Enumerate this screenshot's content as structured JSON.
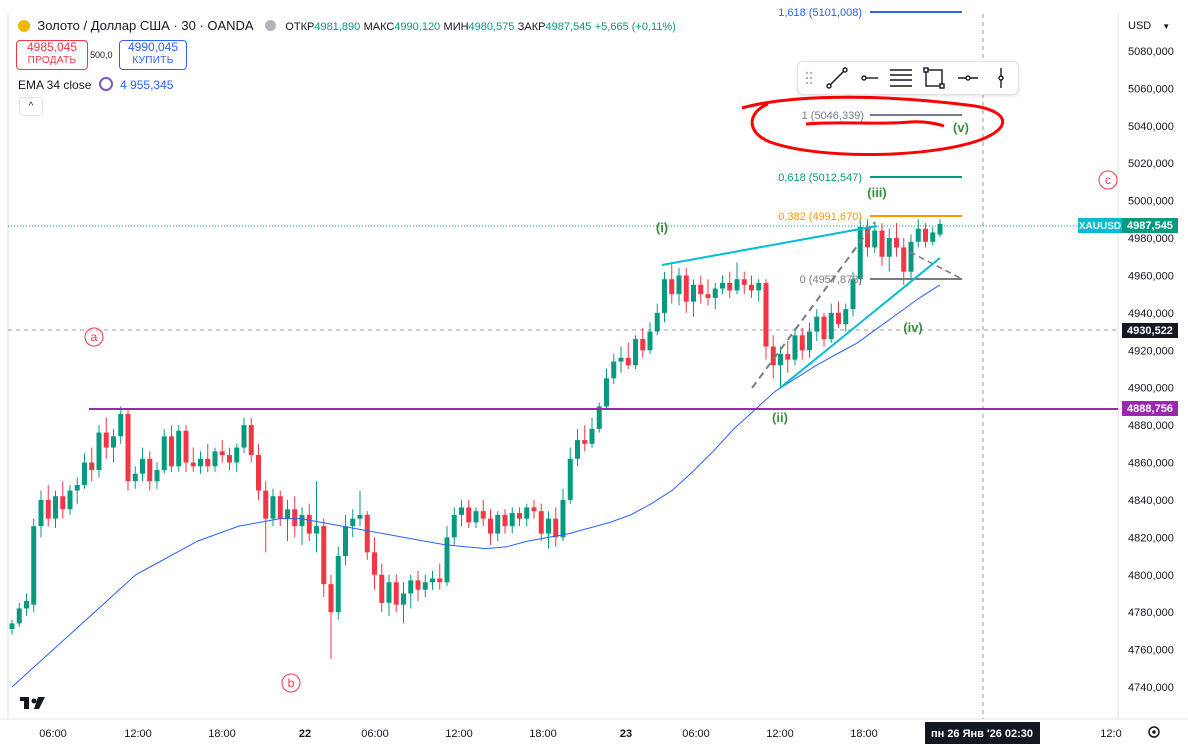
{
  "header": {
    "symbol_title": "Золото / Доллар США · 30 · OANDA",
    "o_label": "ОТКР",
    "o_value": "4981,890",
    "h_label": "МАКС",
    "h_value": "4990,120",
    "l_label": "МИН",
    "l_value": "4980,575",
    "c_label": "ЗАКР",
    "c_value": "4987,545",
    "change": "+5,665 (+0,11%)"
  },
  "trade": {
    "sell_price": "4985,045",
    "sell_label": "ПРОДАТЬ",
    "spread": "500,0",
    "buy_price": "4990,045",
    "buy_label": "КУПИТЬ"
  },
  "indicator": {
    "name": "EMA 34 close",
    "value": "4 955,345"
  },
  "currency": "USD",
  "price_scale": [
    "5080,000",
    "5060,000",
    "5040,000",
    "5020,000",
    "5000,000",
    "4980,000",
    "4960,000",
    "4940,000",
    "4920,000",
    "4900,000",
    "4880,000",
    "4860,000",
    "4840,000",
    "4820,000",
    "4800,000",
    "4780,000",
    "4760,000",
    "4740,000"
  ],
  "price_badges": {
    "symbol": "XAUUSD",
    "last": "4987,545",
    "crosshair": "4930,522",
    "hline": "4888,756"
  },
  "time_scale": [
    "06:00",
    "12:00",
    "18:00",
    "22",
    "06:00",
    "12:00",
    "18:00",
    "23",
    "06:00",
    "12:00",
    "18:00",
    "12:0"
  ],
  "crosshair_time": "пн 26 Янв '26   02:30",
  "fib": {
    "l1618": "1,618 (5101,008)",
    "l1": "1 (5046,339)",
    "l0618": "0,618 (5012,547)",
    "l0382": "0,382 (4991,670)",
    "l0": "0 (4957,878)"
  },
  "wave_labels": {
    "a": "a",
    "b": "b",
    "c": "c",
    "w1": "(i)",
    "w2": "(ii)",
    "w3": "(iii)",
    "w4": "(iv)",
    "w5": "(v)"
  },
  "colors": {
    "up": "#089981",
    "down": "#f23645",
    "ema": "#2962ff",
    "hline": "#9c27b0",
    "trendline": "#00bcd4",
    "annotation": "#ff0000"
  },
  "icons": [
    "drag-handle-icon",
    "trend-line-icon",
    "horizontal-ray-icon",
    "fib-retracement-icon",
    "rectangle-icon",
    "horizontal-line-icon",
    "vertical-line-icon",
    "tradingview-logo-icon",
    "settings-icon",
    "collapse-chevron-icon",
    "ema-settings-icon"
  ],
  "chart_data": {
    "type": "candlestick",
    "ylim": [
      4730,
      5090
    ],
    "candles": [
      {
        "o": 4771,
        "h": 4776,
        "l": 4768,
        "c": 4774
      },
      {
        "o": 4774,
        "h": 4785,
        "l": 4772,
        "c": 4782
      },
      {
        "o": 4782,
        "h": 4790,
        "l": 4778,
        "c": 4786
      },
      {
        "o": 4784,
        "h": 4830,
        "l": 4780,
        "c": 4826
      },
      {
        "o": 4826,
        "h": 4845,
        "l": 4820,
        "c": 4840
      },
      {
        "o": 4840,
        "h": 4848,
        "l": 4826,
        "c": 4830
      },
      {
        "o": 4830,
        "h": 4845,
        "l": 4825,
        "c": 4842
      },
      {
        "o": 4842,
        "h": 4850,
        "l": 4830,
        "c": 4835
      },
      {
        "o": 4835,
        "h": 4848,
        "l": 4832,
        "c": 4845
      },
      {
        "o": 4845,
        "h": 4852,
        "l": 4838,
        "c": 4848
      },
      {
        "o": 4848,
        "h": 4865,
        "l": 4846,
        "c": 4860
      },
      {
        "o": 4860,
        "h": 4868,
        "l": 4850,
        "c": 4856
      },
      {
        "o": 4856,
        "h": 4880,
        "l": 4852,
        "c": 4876
      },
      {
        "o": 4876,
        "h": 4884,
        "l": 4862,
        "c": 4868
      },
      {
        "o": 4868,
        "h": 4878,
        "l": 4860,
        "c": 4874
      },
      {
        "o": 4874,
        "h": 4890,
        "l": 4870,
        "c": 4886
      },
      {
        "o": 4886,
        "h": 4888,
        "l": 4845,
        "c": 4850
      },
      {
        "o": 4850,
        "h": 4858,
        "l": 4846,
        "c": 4854
      },
      {
        "o": 4854,
        "h": 4868,
        "l": 4850,
        "c": 4862
      },
      {
        "o": 4862,
        "h": 4866,
        "l": 4845,
        "c": 4850
      },
      {
        "o": 4850,
        "h": 4860,
        "l": 4846,
        "c": 4856
      },
      {
        "o": 4856,
        "h": 4878,
        "l": 4854,
        "c": 4874
      },
      {
        "o": 4874,
        "h": 4880,
        "l": 4855,
        "c": 4858
      },
      {
        "o": 4858,
        "h": 4880,
        "l": 4855,
        "c": 4877
      },
      {
        "o": 4877,
        "h": 4880,
        "l": 4855,
        "c": 4860
      },
      {
        "o": 4860,
        "h": 4868,
        "l": 4855,
        "c": 4858
      },
      {
        "o": 4858,
        "h": 4866,
        "l": 4854,
        "c": 4862
      },
      {
        "o": 4862,
        "h": 4870,
        "l": 4855,
        "c": 4858
      },
      {
        "o": 4858,
        "h": 4868,
        "l": 4855,
        "c": 4866
      },
      {
        "o": 4866,
        "h": 4872,
        "l": 4860,
        "c": 4864
      },
      {
        "o": 4864,
        "h": 4868,
        "l": 4856,
        "c": 4860
      },
      {
        "o": 4860,
        "h": 4870,
        "l": 4855,
        "c": 4868
      },
      {
        "o": 4868,
        "h": 4884,
        "l": 4865,
        "c": 4880
      },
      {
        "o": 4880,
        "h": 4884,
        "l": 4860,
        "c": 4864
      },
      {
        "o": 4864,
        "h": 4870,
        "l": 4840,
        "c": 4845
      },
      {
        "o": 4845,
        "h": 4850,
        "l": 4812,
        "c": 4830
      },
      {
        "o": 4830,
        "h": 4846,
        "l": 4826,
        "c": 4842
      },
      {
        "o": 4842,
        "h": 4845,
        "l": 4826,
        "c": 4830
      },
      {
        "o": 4830,
        "h": 4840,
        "l": 4818,
        "c": 4835
      },
      {
        "o": 4835,
        "h": 4842,
        "l": 4820,
        "c": 4826
      },
      {
        "o": 4826,
        "h": 4836,
        "l": 4816,
        "c": 4832
      },
      {
        "o": 4832,
        "h": 4838,
        "l": 4818,
        "c": 4822
      },
      {
        "o": 4822,
        "h": 4850,
        "l": 4812,
        "c": 4826
      },
      {
        "o": 4826,
        "h": 4830,
        "l": 4788,
        "c": 4795
      },
      {
        "o": 4795,
        "h": 4800,
        "l": 4755,
        "c": 4780
      },
      {
        "o": 4780,
        "h": 4815,
        "l": 4776,
        "c": 4810
      },
      {
        "o": 4810,
        "h": 4832,
        "l": 4805,
        "c": 4826
      },
      {
        "o": 4826,
        "h": 4835,
        "l": 4820,
        "c": 4830
      },
      {
        "o": 4830,
        "h": 4845,
        "l": 4826,
        "c": 4832
      },
      {
        "o": 4832,
        "h": 4834,
        "l": 4808,
        "c": 4812
      },
      {
        "o": 4812,
        "h": 4820,
        "l": 4792,
        "c": 4800
      },
      {
        "o": 4800,
        "h": 4806,
        "l": 4780,
        "c": 4785
      },
      {
        "o": 4785,
        "h": 4800,
        "l": 4778,
        "c": 4796
      },
      {
        "o": 4796,
        "h": 4800,
        "l": 4780,
        "c": 4784
      },
      {
        "o": 4784,
        "h": 4796,
        "l": 4774,
        "c": 4790
      },
      {
        "o": 4790,
        "h": 4800,
        "l": 4782,
        "c": 4797
      },
      {
        "o": 4797,
        "h": 4802,
        "l": 4786,
        "c": 4792
      },
      {
        "o": 4792,
        "h": 4800,
        "l": 4788,
        "c": 4796
      },
      {
        "o": 4796,
        "h": 4802,
        "l": 4792,
        "c": 4798
      },
      {
        "o": 4798,
        "h": 4806,
        "l": 4792,
        "c": 4796
      },
      {
        "o": 4796,
        "h": 4826,
        "l": 4794,
        "c": 4820
      },
      {
        "o": 4820,
        "h": 4836,
        "l": 4816,
        "c": 4832
      },
      {
        "o": 4832,
        "h": 4840,
        "l": 4826,
        "c": 4836
      },
      {
        "o": 4836,
        "h": 4840,
        "l": 4825,
        "c": 4828
      },
      {
        "o": 4828,
        "h": 4836,
        "l": 4825,
        "c": 4834
      },
      {
        "o": 4834,
        "h": 4840,
        "l": 4826,
        "c": 4830
      },
      {
        "o": 4830,
        "h": 4835,
        "l": 4816,
        "c": 4822
      },
      {
        "o": 4822,
        "h": 4834,
        "l": 4818,
        "c": 4832
      },
      {
        "o": 4832,
        "h": 4835,
        "l": 4822,
        "c": 4826
      },
      {
        "o": 4826,
        "h": 4836,
        "l": 4822,
        "c": 4833
      },
      {
        "o": 4833,
        "h": 4836,
        "l": 4826,
        "c": 4830
      },
      {
        "o": 4830,
        "h": 4838,
        "l": 4826,
        "c": 4836
      },
      {
        "o": 4836,
        "h": 4840,
        "l": 4830,
        "c": 4834
      },
      {
        "o": 4834,
        "h": 4838,
        "l": 4818,
        "c": 4822
      },
      {
        "o": 4822,
        "h": 4834,
        "l": 4814,
        "c": 4830
      },
      {
        "o": 4830,
        "h": 4836,
        "l": 4815,
        "c": 4820
      },
      {
        "o": 4820,
        "h": 4846,
        "l": 4818,
        "c": 4840
      },
      {
        "o": 4840,
        "h": 4868,
        "l": 4838,
        "c": 4862
      },
      {
        "o": 4862,
        "h": 4878,
        "l": 4858,
        "c": 4872
      },
      {
        "o": 4872,
        "h": 4880,
        "l": 4866,
        "c": 4870
      },
      {
        "o": 4870,
        "h": 4884,
        "l": 4868,
        "c": 4878
      },
      {
        "o": 4878,
        "h": 4892,
        "l": 4876,
        "c": 4890
      },
      {
        "o": 4890,
        "h": 4910,
        "l": 4888,
        "c": 4905
      },
      {
        "o": 4905,
        "h": 4918,
        "l": 4902,
        "c": 4914
      },
      {
        "o": 4914,
        "h": 4922,
        "l": 4908,
        "c": 4916
      },
      {
        "o": 4916,
        "h": 4924,
        "l": 4910,
        "c": 4912
      },
      {
        "o": 4912,
        "h": 4928,
        "l": 4910,
        "c": 4926
      },
      {
        "o": 4926,
        "h": 4932,
        "l": 4916,
        "c": 4920
      },
      {
        "o": 4920,
        "h": 4935,
        "l": 4918,
        "c": 4930
      },
      {
        "o": 4930,
        "h": 4945,
        "l": 4928,
        "c": 4940
      },
      {
        "o": 4940,
        "h": 4962,
        "l": 4935,
        "c": 4958
      },
      {
        "o": 4958,
        "h": 4966,
        "l": 4945,
        "c": 4950
      },
      {
        "o": 4950,
        "h": 4964,
        "l": 4944,
        "c": 4960
      },
      {
        "o": 4960,
        "h": 4964,
        "l": 4940,
        "c": 4946
      },
      {
        "o": 4946,
        "h": 4958,
        "l": 4938,
        "c": 4955
      },
      {
        "o": 4955,
        "h": 4960,
        "l": 4945,
        "c": 4950
      },
      {
        "o": 4950,
        "h": 4958,
        "l": 4944,
        "c": 4948
      },
      {
        "o": 4948,
        "h": 4956,
        "l": 4942,
        "c": 4953
      },
      {
        "o": 4953,
        "h": 4960,
        "l": 4950,
        "c": 4956
      },
      {
        "o": 4956,
        "h": 4962,
        "l": 4948,
        "c": 4952
      },
      {
        "o": 4952,
        "h": 4967,
        "l": 4950,
        "c": 4958
      },
      {
        "o": 4958,
        "h": 4962,
        "l": 4950,
        "c": 4955
      },
      {
        "o": 4955,
        "h": 4960,
        "l": 4948,
        "c": 4952
      },
      {
        "o": 4952,
        "h": 4958,
        "l": 4946,
        "c": 4956
      },
      {
        "o": 4956,
        "h": 4958,
        "l": 4915,
        "c": 4922
      },
      {
        "o": 4922,
        "h": 4928,
        "l": 4905,
        "c": 4912
      },
      {
        "o": 4912,
        "h": 4922,
        "l": 4900,
        "c": 4918
      },
      {
        "o": 4918,
        "h": 4925,
        "l": 4908,
        "c": 4915
      },
      {
        "o": 4915,
        "h": 4932,
        "l": 4912,
        "c": 4928
      },
      {
        "o": 4928,
        "h": 4932,
        "l": 4915,
        "c": 4920
      },
      {
        "o": 4920,
        "h": 4935,
        "l": 4916,
        "c": 4930
      },
      {
        "o": 4930,
        "h": 4942,
        "l": 4925,
        "c": 4938
      },
      {
        "o": 4938,
        "h": 4940,
        "l": 4922,
        "c": 4926
      },
      {
        "o": 4926,
        "h": 4945,
        "l": 4924,
        "c": 4940
      },
      {
        "o": 4940,
        "h": 4946,
        "l": 4932,
        "c": 4934
      },
      {
        "o": 4934,
        "h": 4945,
        "l": 4930,
        "c": 4942
      },
      {
        "o": 4942,
        "h": 4962,
        "l": 4938,
        "c": 4958
      },
      {
        "o": 4958,
        "h": 4991,
        "l": 4955,
        "c": 4986
      },
      {
        "o": 4986,
        "h": 4990,
        "l": 4970,
        "c": 4975
      },
      {
        "o": 4975,
        "h": 4988,
        "l": 4972,
        "c": 4984
      },
      {
        "o": 4984,
        "h": 4988,
        "l": 4965,
        "c": 4970
      },
      {
        "o": 4970,
        "h": 4985,
        "l": 4962,
        "c": 4980
      },
      {
        "o": 4980,
        "h": 4988,
        "l": 4970,
        "c": 4975
      },
      {
        "o": 4975,
        "h": 4980,
        "l": 4955,
        "c": 4962
      },
      {
        "o": 4962,
        "h": 4982,
        "l": 4958,
        "c": 4978
      },
      {
        "o": 4978,
        "h": 4990,
        "l": 4975,
        "c": 4985
      },
      {
        "o": 4985,
        "h": 4988,
        "l": 4975,
        "c": 4978
      },
      {
        "o": 4978,
        "h": 4986,
        "l": 4976,
        "c": 4983
      },
      {
        "o": 4981.89,
        "h": 4990.12,
        "l": 4980.575,
        "c": 4987.545
      }
    ],
    "ema_34": [
      4740,
      4750,
      4760,
      4770,
      4780,
      4790,
      4800,
      4806,
      4812,
      4818,
      4822,
      4826,
      4828,
      4830,
      4830,
      4828,
      4826,
      4824,
      4822,
      4820,
      4818,
      4816,
      4815,
      4814,
      4815,
      4818,
      4820,
      4822,
      4825,
      4828,
      4832,
      4838,
      4845,
      4855,
      4866,
      4878,
      4888,
      4898,
      4905,
      4912,
      4918,
      4924,
      4932,
      4940,
      4948,
      4955
    ],
    "hline": 4888.756,
    "crosshair_price": 4930.522
  }
}
